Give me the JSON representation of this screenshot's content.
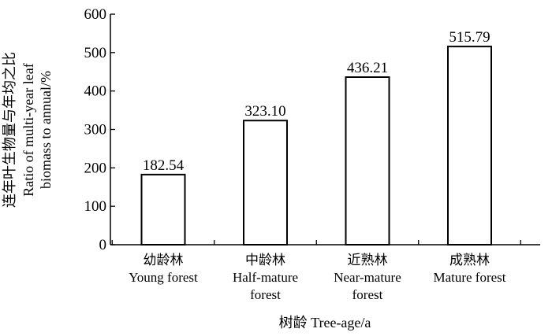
{
  "chart_data": {
    "type": "bar",
    "categories": [
      [
        "幼龄林",
        "Young forest"
      ],
      [
        "中龄林",
        "Half-mature",
        "forest"
      ],
      [
        "近熟林",
        "Near-mature",
        "forest"
      ],
      [
        "成熟林",
        "Mature forest"
      ]
    ],
    "values": [
      182.54,
      323.1,
      436.21,
      515.79
    ],
    "value_labels": [
      "182.54",
      "323.10",
      "436.21",
      "515.79"
    ],
    "xlabel": "树龄 Tree-age/a",
    "ylabel": [
      "连年叶生物量与年均之比",
      "Ratio of multi-year leaf",
      "biomass to annual/%"
    ],
    "ylim": [
      0,
      600
    ],
    "yticks": [
      0,
      100,
      200,
      300,
      400,
      500,
      600
    ],
    "grid": false,
    "legend": "none",
    "colors": {
      "bar_fill": "#ffffff",
      "bar_stroke": "#000000",
      "axis": "#000000"
    }
  }
}
